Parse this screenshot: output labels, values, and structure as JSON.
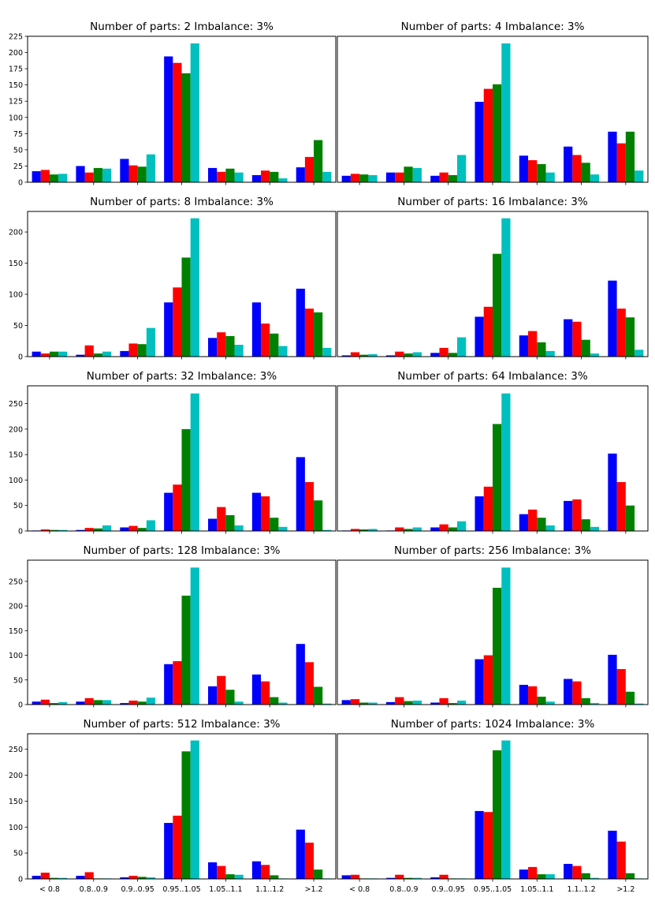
{
  "chart_data": {
    "type": "bar",
    "categories": [
      "< 0.8",
      "0.8..0.9",
      "0.9..0.95",
      "0.95..1.05",
      "1.05..1.1",
      "1.1..1.2",
      ">1.2"
    ],
    "colors": [
      "#0000ff",
      "#ff0000",
      "#008000",
      "#00bfbf"
    ],
    "panels": [
      {
        "title": "Number of parts: 2   Imbalance: 3%",
        "ylim": [
          0,
          225
        ],
        "yticks": [
          0,
          25,
          50,
          75,
          100,
          125,
          150,
          175,
          200,
          225
        ],
        "series": [
          {
            "values": [
              17,
              25,
              36,
              194,
              22,
              11,
              23
            ]
          },
          {
            "values": [
              19,
              15,
              26,
              184,
              16,
              18,
              39
            ]
          },
          {
            "values": [
              12,
              22,
              24,
              168,
              21,
              16,
              65
            ]
          },
          {
            "values": [
              13,
              21,
              43,
              214,
              15,
              6,
              16
            ]
          }
        ]
      },
      {
        "title": "Number of parts: 4   Imbalance: 3%",
        "ylim": [
          0,
          225
        ],
        "yticks": [],
        "series": [
          {
            "values": [
              10,
              15,
              10,
              124,
              41,
              55,
              78
            ]
          },
          {
            "values": [
              13,
              15,
              15,
              144,
              34,
              42,
              60
            ]
          },
          {
            "values": [
              12,
              24,
              11,
              151,
              28,
              30,
              78
            ]
          },
          {
            "values": [
              11,
              22,
              42,
              214,
              15,
              12,
              18
            ]
          }
        ]
      },
      {
        "title": "Number of parts: 8   Imbalance: 3%",
        "ylim": [
          0,
          233
        ],
        "yticks": [
          0,
          50,
          100,
          150,
          200
        ],
        "series": [
          {
            "values": [
              8,
              3,
              9,
              87,
              30,
              87,
              109
            ]
          },
          {
            "values": [
              5,
              18,
              21,
              111,
              39,
              53,
              77
            ]
          },
          {
            "values": [
              8,
              5,
              20,
              159,
              33,
              37,
              71
            ]
          },
          {
            "values": [
              8,
              8,
              46,
              222,
              19,
              17,
              14
            ]
          }
        ]
      },
      {
        "title": "Number of parts: 16   Imbalance: 3%",
        "ylim": [
          0,
          233
        ],
        "yticks": [],
        "series": [
          {
            "values": [
              2,
              2,
              6,
              64,
              34,
              60,
              122
            ]
          },
          {
            "values": [
              7,
              8,
              14,
              80,
              41,
              56,
              77
            ]
          },
          {
            "values": [
              3,
              5,
              6,
              165,
              23,
              27,
              63
            ]
          },
          {
            "values": [
              4,
              7,
              31,
              222,
              9,
              5,
              11
            ]
          }
        ]
      },
      {
        "title": "Number of parts: 32   Imbalance: 3%",
        "ylim": [
          0,
          285
        ],
        "yticks": [
          0,
          50,
          100,
          150,
          200,
          250
        ],
        "series": [
          {
            "values": [
              1,
              2,
              7,
              75,
              24,
              75,
              145
            ]
          },
          {
            "values": [
              3,
              6,
              10,
              91,
              47,
              68,
              96
            ]
          },
          {
            "values": [
              2,
              5,
              6,
              200,
              31,
              26,
              60
            ]
          },
          {
            "values": [
              2,
              11,
              21,
              270,
              11,
              8,
              2
            ]
          }
        ]
      },
      {
        "title": "Number of parts: 64   Imbalance: 3%",
        "ylim": [
          0,
          285
        ],
        "yticks": [],
        "series": [
          {
            "values": [
              1,
              1,
              7,
              68,
              33,
              59,
              152
            ]
          },
          {
            "values": [
              4,
              7,
              13,
              87,
              42,
              62,
              96
            ]
          },
          {
            "values": [
              3,
              4,
              7,
              210,
              26,
              23,
              50
            ]
          },
          {
            "values": [
              4,
              7,
              19,
              270,
              11,
              8,
              0
            ]
          }
        ]
      },
      {
        "title": "Number of parts: 128   Imbalance: 3%",
        "ylim": [
          0,
          293
        ],
        "yticks": [
          0,
          50,
          100,
          150,
          200,
          250
        ],
        "series": [
          {
            "values": [
              6,
              6,
              3,
              82,
              37,
              61,
              123
            ]
          },
          {
            "values": [
              10,
              13,
              8,
              88,
              58,
              47,
              86
            ]
          },
          {
            "values": [
              3,
              9,
              6,
              221,
              30,
              15,
              36
            ]
          },
          {
            "values": [
              5,
              9,
              14,
              278,
              6,
              4,
              2
            ]
          }
        ]
      },
      {
        "title": "Number of parts: 256   Imbalance: 3%",
        "ylim": [
          0,
          293
        ],
        "yticks": [],
        "series": [
          {
            "values": [
              9,
              5,
              4,
              92,
              40,
              52,
              101
            ]
          },
          {
            "values": [
              11,
              15,
              13,
              100,
              37,
              47,
              72
            ]
          },
          {
            "values": [
              4,
              7,
              3,
              237,
              16,
              13,
              26
            ]
          },
          {
            "values": [
              4,
              8,
              8,
              278,
              6,
              3,
              2
            ]
          }
        ]
      },
      {
        "title": "Number of parts: 512   Imbalance: 3%",
        "ylim": [
          0,
          280
        ],
        "yticks": [
          0,
          50,
          100,
          150,
          200,
          250
        ],
        "xticks": [
          "< 0.8",
          "0.8..0.9",
          "0.9..0.95",
          "0.95..1.05",
          "1.05..1.1",
          "1.1..1.2",
          ">1.2"
        ],
        "series": [
          {
            "values": [
              6,
              6,
              3,
              108,
              32,
              34,
              95
            ]
          },
          {
            "values": [
              12,
              13,
              6,
              122,
              25,
              27,
              70
            ]
          },
          {
            "values": [
              2,
              1,
              4,
              246,
              9,
              7,
              18
            ]
          },
          {
            "values": [
              2,
              1,
              3,
              267,
              8,
              1,
              1
            ]
          }
        ]
      },
      {
        "title": "Number of parts: 1024   Imbalance: 3%",
        "ylim": [
          0,
          280
        ],
        "yticks": [],
        "xticks": [
          "< 0.8",
          "0.8..0.9",
          "0.9..0.95",
          "0.95..1.05",
          "1.05..1.1",
          "1.1..1.2",
          ">1.2"
        ],
        "series": [
          {
            "values": [
              7,
              2,
              3,
              131,
              18,
              29,
              93
            ]
          },
          {
            "values": [
              8,
              8,
              8,
              129,
              23,
              25,
              72
            ]
          },
          {
            "values": [
              1,
              2,
              1,
              248,
              9,
              11,
              11
            ]
          },
          {
            "values": [
              1,
              2,
              1,
              267,
              9,
              2,
              1
            ]
          }
        ]
      }
    ]
  }
}
